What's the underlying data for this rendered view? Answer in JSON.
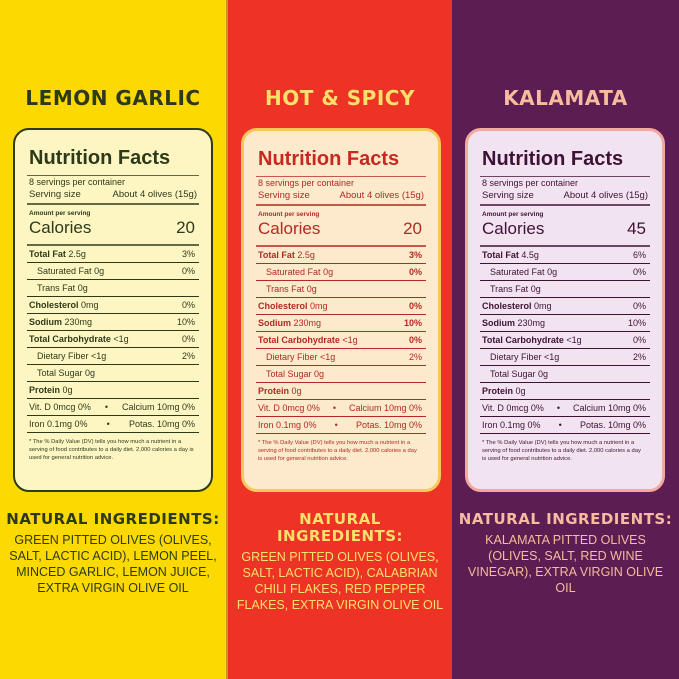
{
  "panels": [
    {
      "flavor": "LEMON GARLIC",
      "colors": {
        "background": "#fcd900",
        "text": "#2d3a1a",
        "label_bg": "#fdf6c3"
      },
      "nutrition": {
        "title": "Nutrition Facts",
        "servings": "8 servings per container",
        "serving_size_label": "Serving size",
        "serving_size_value": "About 4 olives (15g)",
        "amount_per_serving": "Amount per serving",
        "calories_label": "Calories",
        "calories_value": "20",
        "rows": [
          {
            "label": "Total Fat",
            "value": "2.5g",
            "dv": "3%"
          },
          {
            "label": "Saturated Fat",
            "value": "0g",
            "dv": "0%"
          },
          {
            "label": "Trans Fat",
            "value": "0g",
            "dv": ""
          },
          {
            "label": "Cholesterol",
            "value": "0mg",
            "dv": "0%"
          },
          {
            "label": "Sodium",
            "value": "230mg",
            "dv": "10%"
          },
          {
            "label": "Total Carbohydrate",
            "value": "<1g",
            "dv": "0%"
          },
          {
            "label": "Dietary Fiber",
            "value": "<1g",
            "dv": "2%"
          },
          {
            "label": "Total Sugar",
            "value": "0g",
            "dv": ""
          },
          {
            "label": "Protein",
            "value": "0g",
            "dv": ""
          }
        ],
        "vit_d": "Vit. D 0mcg 0%",
        "calcium": "Calcium 10mg 0%",
        "iron": "Iron 0.1mg 0%",
        "potassium": "Potas. 10mg 0%",
        "bullet": "•",
        "footnote": "* The % Daily Value (DV) tells you how much a nutrient in a serving of food contributes to a daily diet. 2,000 calories a day is used for general nutrition advice."
      },
      "ingredients_heading": "NATURAL INGREDIENTS:",
      "ingredients": "GREEN PITTED OLIVES (OLIVES, SALT, LACTIC ACID), LEMON PEEL, MINCED GARLIC, LEMON JUICE, EXTRA VIRGIN OLIVE OIL"
    },
    {
      "flavor": "HOT & SPICY",
      "colors": {
        "background": "#ec3325",
        "text": "#fde06a",
        "label_bg": "#fde9cc"
      },
      "nutrition": {
        "title": "Nutrition Facts",
        "servings": "8 servings per container",
        "serving_size_label": "Serving size",
        "serving_size_value": "About 4 olives (15g)",
        "amount_per_serving": "Amount per serving",
        "calories_label": "Calories",
        "calories_value": "20",
        "rows": [
          {
            "label": "Total Fat",
            "value": "2.5g",
            "dv": "3%"
          },
          {
            "label": "Saturated Fat",
            "value": "0g",
            "dv": "0%"
          },
          {
            "label": "Trans Fat",
            "value": "0g",
            "dv": ""
          },
          {
            "label": "Cholesterol",
            "value": "0mg",
            "dv": "0%"
          },
          {
            "label": "Sodium",
            "value": "230mg",
            "dv": "10%"
          },
          {
            "label": "Total Carbohydrate",
            "value": "<1g",
            "dv": "0%"
          },
          {
            "label": "Dietary Fiber",
            "value": "<1g",
            "dv": "2%"
          },
          {
            "label": "Total Sugar",
            "value": "0g",
            "dv": ""
          },
          {
            "label": "Protein",
            "value": "0g",
            "dv": ""
          }
        ],
        "vit_d": "Vit. D 0mcg 0%",
        "calcium": "Calcium 10mg 0%",
        "iron": "Iron 0.1mg 0%",
        "potassium": "Potas. 10mg 0%",
        "bullet": "•",
        "footnote": "* The % Daily Value (DV) tells you how much a nutrient in a serving of food contributes to a daily diet. 2,000 calories a day is used for general nutrition advice."
      },
      "ingredients_heading": "NATURAL INGREDIENTS:",
      "ingredients": "GREEN PITTED OLIVES (OLIVES, SALT, LACTIC ACID), CALABRIAN CHILI FLAKES, RED PEPPER FLAKES, EXTRA VIRGIN OLIVE OIL"
    },
    {
      "flavor": "KALAMATA",
      "colors": {
        "background": "#5b1d52",
        "text": "#f7bb9f",
        "label_bg": "#f2e3f0"
      },
      "nutrition": {
        "title": "Nutrition Facts",
        "servings": "8 servings per container",
        "serving_size_label": "Serving size",
        "serving_size_value": "About 4 olives (15g)",
        "amount_per_serving": "Amount per serving",
        "calories_label": "Calories",
        "calories_value": "45",
        "rows": [
          {
            "label": "Total Fat",
            "value": "4.5g",
            "dv": "6%"
          },
          {
            "label": "Saturated Fat",
            "value": "0g",
            "dv": "0%"
          },
          {
            "label": "Trans Fat",
            "value": "0g",
            "dv": ""
          },
          {
            "label": "Cholesterol",
            "value": "0mg",
            "dv": "0%"
          },
          {
            "label": "Sodium",
            "value": "230mg",
            "dv": "10%"
          },
          {
            "label": "Total Carbohydrate",
            "value": "<1g",
            "dv": "0%"
          },
          {
            "label": "Dietary Fiber",
            "value": "<1g",
            "dv": "2%"
          },
          {
            "label": "Total Sugar",
            "value": "0g",
            "dv": ""
          },
          {
            "label": "Protein",
            "value": "0g",
            "dv": ""
          }
        ],
        "vit_d": "Vit. D 0mcg 0%",
        "calcium": "Calcium 10mg 0%",
        "iron": "Iron 0.1mg 0%",
        "potassium": "Potas. 10mg 0%",
        "bullet": "•",
        "footnote": "* The % Daily Value (DV) tells you how much a nutrient in a serving of food contributes to a daily diet. 2,000 calories a day is used for general nutrition advice."
      },
      "ingredients_heading": "NATURAL INGREDIENTS:",
      "ingredients": "KALAMATA PITTED OLIVES (OLIVES, SALT, RED WINE VINEGAR), EXTRA VIRGIN OLIVE OIL"
    }
  ]
}
